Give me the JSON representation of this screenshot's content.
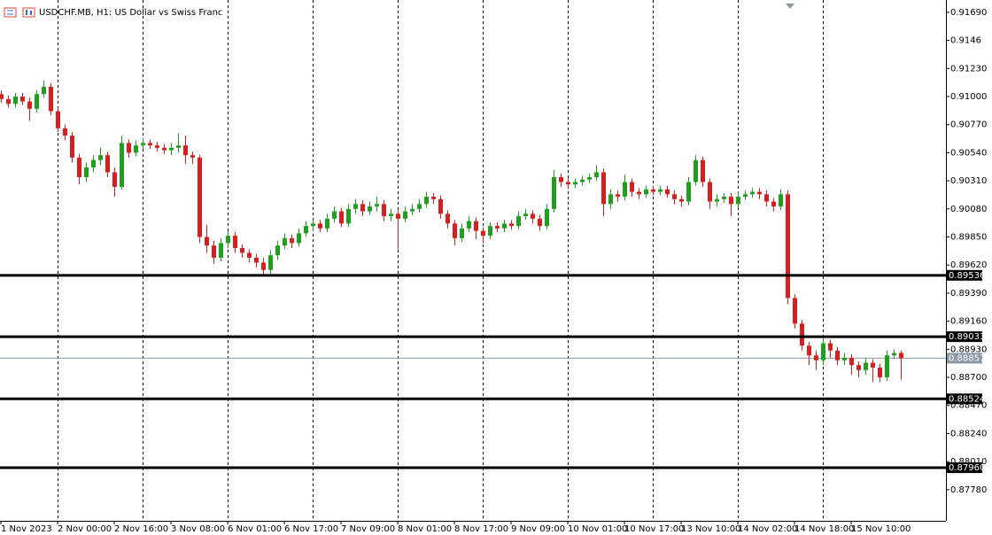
{
  "chart_data": {
    "type": "candlestick",
    "title": "USDCHF.MB, H1:  US Dollar vs Swiss Franc",
    "categories": [
      "1 Nov 2023",
      null,
      null,
      null,
      null,
      null,
      null,
      null,
      "2 Nov 00:00",
      null,
      null,
      null,
      null,
      null,
      null,
      null,
      "2 Nov 16:00",
      null,
      null,
      null,
      null,
      null,
      null,
      null,
      "3 Nov 08:00",
      null,
      null,
      null,
      null,
      null,
      null,
      null,
      "6 Nov 01:00",
      null,
      null,
      null,
      null,
      null,
      null,
      null,
      "6 Nov 17:00",
      null,
      null,
      null,
      null,
      null,
      null,
      null,
      "7 Nov 09:00",
      null,
      null,
      null,
      null,
      null,
      null,
      null,
      "8 Nov 01:00",
      null,
      null,
      null,
      null,
      null,
      null,
      null,
      "8 Nov 17:00",
      null,
      null,
      null,
      null,
      null,
      null,
      null,
      "9 Nov 09:00",
      null,
      null,
      null,
      null,
      null,
      null,
      null,
      "10 Nov 01:00",
      null,
      null,
      null,
      null,
      null,
      null,
      null,
      "10 Nov 17:00",
      null,
      null,
      null,
      null,
      null,
      null,
      null,
      "13 Nov 10:00",
      null,
      null,
      null,
      null,
      null,
      null,
      null,
      "14 Nov 02:00",
      null,
      null,
      null,
      null,
      null,
      null,
      null,
      "14 Nov 18:00",
      null,
      null,
      null,
      null,
      null,
      null,
      null,
      "15 Nov 10:00",
      null,
      null,
      null,
      null,
      null,
      null,
      null
    ],
    "open": [
      0.9102,
      0.9098,
      0.9094,
      0.91,
      0.9096,
      0.909,
      0.9102,
      0.9108,
      0.9088,
      0.9074,
      0.9068,
      0.905,
      0.9034,
      0.9042,
      0.9048,
      0.9052,
      0.9038,
      0.9026,
      0.9062,
      0.9054,
      0.906,
      0.9062,
      0.906,
      0.9058,
      0.9056,
      0.9058,
      0.906,
      0.9052,
      0.905,
      0.8985,
      0.8978,
      0.8968,
      0.898,
      0.8986,
      0.8976,
      0.8972,
      0.8968,
      0.8964,
      0.8958,
      0.897,
      0.8978,
      0.8984,
      0.898,
      0.8988,
      0.8994,
      0.8996,
      0.8992,
      0.9,
      0.9006,
      0.8996,
      0.9008,
      0.9012,
      0.9006,
      0.901,
      0.9012,
      0.9002,
      0.9004,
      0.9,
      0.9006,
      0.9008,
      0.9012,
      0.9018,
      0.9016,
      0.9004,
      0.8996,
      0.8984,
      0.8992,
      0.8998,
      0.899,
      0.8986,
      0.8994,
      0.8992,
      0.8996,
      0.8994,
      0.9002,
      0.9004,
      0.9,
      0.8994,
      0.9008,
      0.9034,
      0.903,
      0.9028,
      0.903,
      0.9032,
      0.9034,
      0.9038,
      0.9012,
      0.902,
      0.9018,
      0.903,
      0.9022,
      0.902,
      0.9024,
      0.9022,
      0.9024,
      0.902,
      0.9016,
      0.9014,
      0.903,
      0.9048,
      0.903,
      0.9014,
      0.9016,
      0.9018,
      0.9012,
      0.9018,
      0.902,
      0.9022,
      0.902,
      0.9014,
      0.901,
      0.902,
      0.8935,
      0.8914,
      0.8896,
      0.8888,
      0.8884,
      0.8898,
      0.8892,
      0.8884,
      0.8886,
      0.888,
      0.8876,
      0.8882,
      0.8878,
      0.887,
      0.8888,
      0.889
    ],
    "high": [
      0.9105,
      0.9101,
      0.9103,
      0.9103,
      0.9099,
      0.9105,
      0.9113,
      0.9111,
      0.9091,
      0.9077,
      0.9071,
      0.9053,
      0.9046,
      0.9052,
      0.9058,
      0.9055,
      0.9042,
      0.9068,
      0.9065,
      0.9064,
      0.9066,
      0.9065,
      0.9063,
      0.9061,
      0.9062,
      0.907,
      0.9068,
      0.9055,
      0.9052,
      0.8995,
      0.8982,
      0.8984,
      0.899,
      0.8989,
      0.8979,
      0.8975,
      0.8971,
      0.8968,
      0.8974,
      0.8982,
      0.8988,
      0.8987,
      0.8992,
      0.8998,
      0.8999,
      0.8999,
      0.9004,
      0.901,
      0.9009,
      0.9012,
      0.9016,
      0.9015,
      0.9014,
      0.9018,
      0.9015,
      0.9008,
      0.9007,
      0.901,
      0.9012,
      0.9016,
      0.9022,
      0.9021,
      0.9019,
      0.9007,
      0.8999,
      0.8996,
      0.9002,
      0.9001,
      0.8993,
      0.8997,
      0.8997,
      0.8999,
      0.8999,
      0.9006,
      0.9008,
      0.9007,
      0.9003,
      0.9012,
      0.904,
      0.9037,
      0.9033,
      0.9033,
      0.9035,
      0.9037,
      0.9044,
      0.9041,
      0.9024,
      0.9023,
      0.9036,
      0.9033,
      0.9025,
      0.9027,
      0.9027,
      0.9027,
      0.9027,
      0.9023,
      0.9019,
      0.9034,
      0.9052,
      0.9051,
      0.9033,
      0.902,
      0.9021,
      0.9021,
      0.9022,
      0.9023,
      0.9025,
      0.9025,
      0.9023,
      0.9017,
      0.9024,
      0.9023,
      0.8938,
      0.8917,
      0.8899,
      0.8892,
      0.8903,
      0.8901,
      0.8895,
      0.889,
      0.8889,
      0.8883,
      0.8886,
      0.8885,
      0.8881,
      0.8892,
      0.8893,
      0.8892
    ],
    "low": [
      0.9095,
      0.9091,
      0.9091,
      0.9093,
      0.908,
      0.9087,
      0.9099,
      0.9085,
      0.9071,
      0.9064,
      0.9046,
      0.9028,
      0.903,
      0.9038,
      0.9044,
      0.9034,
      0.9018,
      0.9024,
      0.905,
      0.9051,
      0.9057,
      0.9057,
      0.9055,
      0.9053,
      0.9052,
      0.9054,
      0.9045,
      0.9045,
      0.898,
      0.8972,
      0.8963,
      0.8965,
      0.8976,
      0.8972,
      0.8968,
      0.8964,
      0.896,
      0.8954,
      0.8955,
      0.8966,
      0.8975,
      0.8976,
      0.8977,
      0.8985,
      0.899,
      0.8989,
      0.8989,
      0.8997,
      0.8993,
      0.8993,
      0.9004,
      0.9002,
      0.9003,
      0.9006,
      0.8998,
      0.8998,
      0.8975,
      0.8997,
      0.9003,
      0.9005,
      0.9009,
      0.9012,
      0.9,
      0.8992,
      0.8978,
      0.8981,
      0.8989,
      0.8983,
      0.898,
      0.8983,
      0.8989,
      0.8989,
      0.8991,
      0.8991,
      0.8999,
      0.8996,
      0.899,
      0.8991,
      0.9005,
      0.9026,
      0.9025,
      0.9025,
      0.9027,
      0.9029,
      0.9031,
      0.9002,
      0.9008,
      0.9014,
      0.9015,
      0.9018,
      0.9016,
      0.9017,
      0.9019,
      0.9019,
      0.9017,
      0.9012,
      0.901,
      0.9011,
      0.9027,
      0.9026,
      0.9008,
      0.901,
      0.9013,
      0.9002,
      0.9009,
      0.9015,
      0.9017,
      0.9016,
      0.901,
      0.9006,
      0.9007,
      0.893,
      0.891,
      0.8892,
      0.888,
      0.8876,
      0.888,
      0.8886,
      0.888,
      0.888,
      0.8872,
      0.887,
      0.8872,
      0.8866,
      0.8866,
      0.8867,
      0.8885,
      0.8868
    ],
    "close": [
      0.9098,
      0.9094,
      0.91,
      0.9096,
      0.909,
      0.9102,
      0.9108,
      0.9088,
      0.9074,
      0.9068,
      0.905,
      0.9034,
      0.9042,
      0.9048,
      0.9052,
      0.9038,
      0.9026,
      0.9062,
      0.9054,
      0.906,
      0.9062,
      0.906,
      0.9058,
      0.9056,
      0.9058,
      0.906,
      0.9052,
      0.905,
      0.8985,
      0.8978,
      0.8968,
      0.898,
      0.8986,
      0.8976,
      0.8972,
      0.8968,
      0.8964,
      0.8958,
      0.897,
      0.8978,
      0.8984,
      0.898,
      0.8988,
      0.8994,
      0.8996,
      0.8992,
      0.9,
      0.9006,
      0.8996,
      0.9008,
      0.9012,
      0.9006,
      0.901,
      0.9012,
      0.9002,
      0.9004,
      0.9,
      0.9006,
      0.9008,
      0.9012,
      0.9018,
      0.9016,
      0.9004,
      0.8996,
      0.8984,
      0.8992,
      0.8998,
      0.899,
      0.8986,
      0.8994,
      0.8992,
      0.8996,
      0.8994,
      0.9002,
      0.9004,
      0.9,
      0.8994,
      0.9008,
      0.9034,
      0.903,
      0.9028,
      0.903,
      0.9032,
      0.9034,
      0.9038,
      0.9012,
      0.902,
      0.9018,
      0.903,
      0.9022,
      0.902,
      0.9024,
      0.9022,
      0.9024,
      0.902,
      0.9016,
      0.9014,
      0.903,
      0.9048,
      0.903,
      0.9014,
      0.9016,
      0.9018,
      0.9012,
      0.9018,
      0.902,
      0.9022,
      0.902,
      0.9014,
      0.901,
      0.902,
      0.8935,
      0.8914,
      0.8896,
      0.8888,
      0.8884,
      0.8898,
      0.8892,
      0.8884,
      0.8886,
      0.888,
      0.8876,
      0.8882,
      0.8878,
      0.887,
      0.8888,
      0.889,
      0.88857
    ],
    "up_color": "#1f9e1f",
    "down_color": "#d62020",
    "ylim": [
      0.87525,
      0.91791
    ],
    "yticks": [
      {
        "value": 0.9169,
        "label": "0.91690"
      },
      0.9146,
      {
        "value": 0.9123,
        "label": "0.91230"
      },
      {
        "value": 0.91,
        "label": "0.91000"
      },
      {
        "value": 0.9077,
        "label": "0.90770"
      },
      {
        "value": 0.9054,
        "label": "0.90540"
      },
      {
        "value": 0.9031,
        "label": "0.90310"
      },
      {
        "value": 0.9008,
        "label": "0.90080"
      },
      {
        "value": 0.8985,
        "label": "0.89850"
      },
      {
        "value": 0.8962,
        "label": "0.89620"
      },
      {
        "value": 0.8939,
        "label": "0.89390"
      },
      {
        "value": 0.8916,
        "label": "0.89160"
      },
      {
        "value": 0.8893,
        "label": "0.88930"
      },
      {
        "value": 0.887,
        "label": "0.88700"
      },
      {
        "value": 0.8847,
        "label": "0.88470"
      },
      {
        "value": 0.8824,
        "label": "0.88240"
      },
      {
        "value": 0.8801,
        "label": "0.88010"
      },
      {
        "value": 0.8778,
        "label": "0.87780"
      }
    ],
    "levels": [
      0.89536,
      0.89033,
      0.88524,
      {
        "value": 0.8796,
        "label": "0.87960"
      }
    ],
    "level_color": "#000000",
    "current_price": 0.88857,
    "current_color": "#8a98a8",
    "grid": true
  }
}
